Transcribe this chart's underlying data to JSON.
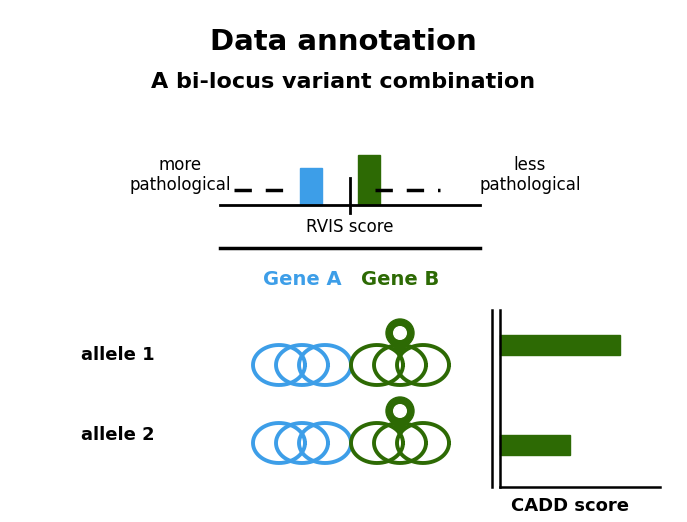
{
  "title": "Data annotation",
  "subtitle": "A bi-locus variant combination",
  "blue_color": "#3D9EE8",
  "dark_green_color": "#2D6A04",
  "black": "#000000",
  "bg_color": "#FFFFFF",
  "rvis_label": "RVIS score",
  "cadd_label": "CADD score",
  "gene_a_label": "Gene A",
  "gene_b_label": "Gene B",
  "allele1_label": "allele 1",
  "allele2_label": "allele 2",
  "more_patho": "more\npathological",
  "less_patho": "less\npathological"
}
